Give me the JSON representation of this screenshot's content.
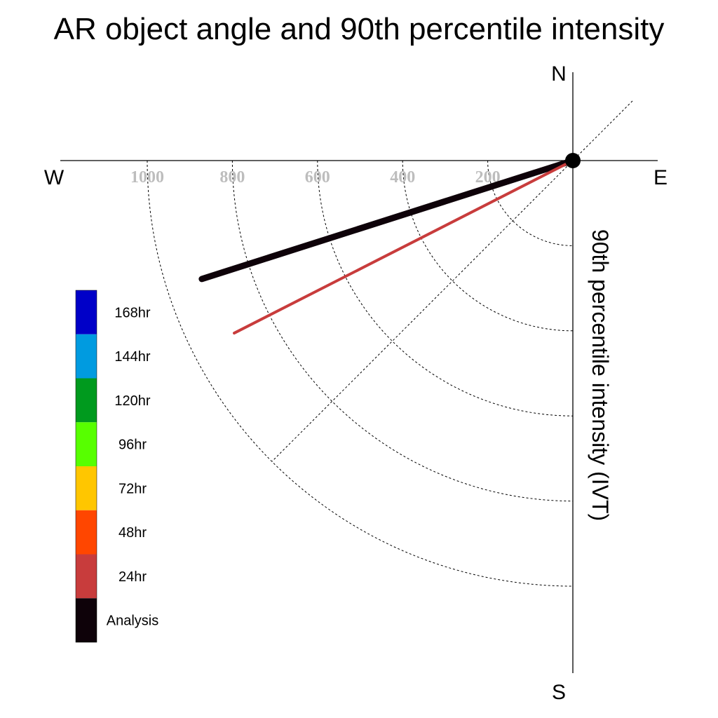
{
  "chart_data": {
    "type": "polar-line",
    "title": "AR object angle and 90th percentile intensity",
    "radial_label": "90th percentile intensity (IVT)",
    "directions": {
      "north": "N",
      "south": "S",
      "east": "E",
      "west": "W"
    },
    "radial_ticks": [
      200,
      400,
      600,
      800,
      1000
    ],
    "radial_range": [
      0,
      1000
    ],
    "angle_units": "degrees clockwise from north",
    "grid": true,
    "legend_placement": "lower-left",
    "legend": [
      {
        "label": "168hr",
        "color": "#0000c8"
      },
      {
        "label": "144hr",
        "color": "#009be0"
      },
      {
        "label": "120hr",
        "color": "#009a1e"
      },
      {
        "label": "96hr",
        "color": "#57ff00"
      },
      {
        "label": "72hr",
        "color": "#ffc600"
      },
      {
        "label": "48hr",
        "color": "#ff4600"
      },
      {
        "label": "24hr",
        "color": "#c83c3c"
      },
      {
        "label": "Analysis",
        "color": "#0e0209"
      }
    ],
    "series": [
      {
        "name": "Analysis",
        "angle": 252.3,
        "value": 915,
        "color": "#0e0209"
      },
      {
        "name": "24hr",
        "angle": 243.0,
        "value": 893,
        "color": "#c83c3c"
      }
    ]
  }
}
